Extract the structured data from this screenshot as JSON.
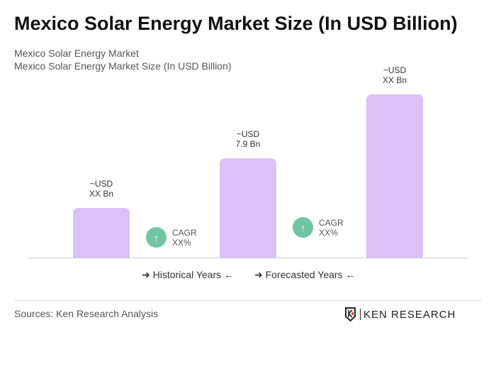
{
  "title": "Mexico Solar Energy Market Size (In USD Billion)",
  "subtitle1": "Mexico Solar Energy Market",
  "subtitle2": "Mexico Solar Energy Market Size (In USD Billion)",
  "chart_data": {
    "type": "bar",
    "title": "Mexico Solar Energy Market Size (In USD Billion)",
    "categories": [
      "",
      "",
      ""
    ],
    "values": [
      null,
      7.9,
      null
    ],
    "data_labels": [
      [
        "~USD",
        "XX Bn"
      ],
      [
        "~USD",
        "7.9 Bn"
      ],
      [
        "~USD",
        "XX Bn"
      ]
    ],
    "bar_color": "#dcc1f6",
    "cagr": [
      {
        "label": "CAGR",
        "value": "XX%"
      },
      {
        "label": "CAGR",
        "value": "XX%"
      }
    ],
    "cagr_color": "#6fc6a3",
    "legend": [
      "Historical Years",
      "Forecasted Years"
    ],
    "grid": false
  },
  "source": "Sources: Ken Research Analysis",
  "logo": "KEN RESEARCH"
}
